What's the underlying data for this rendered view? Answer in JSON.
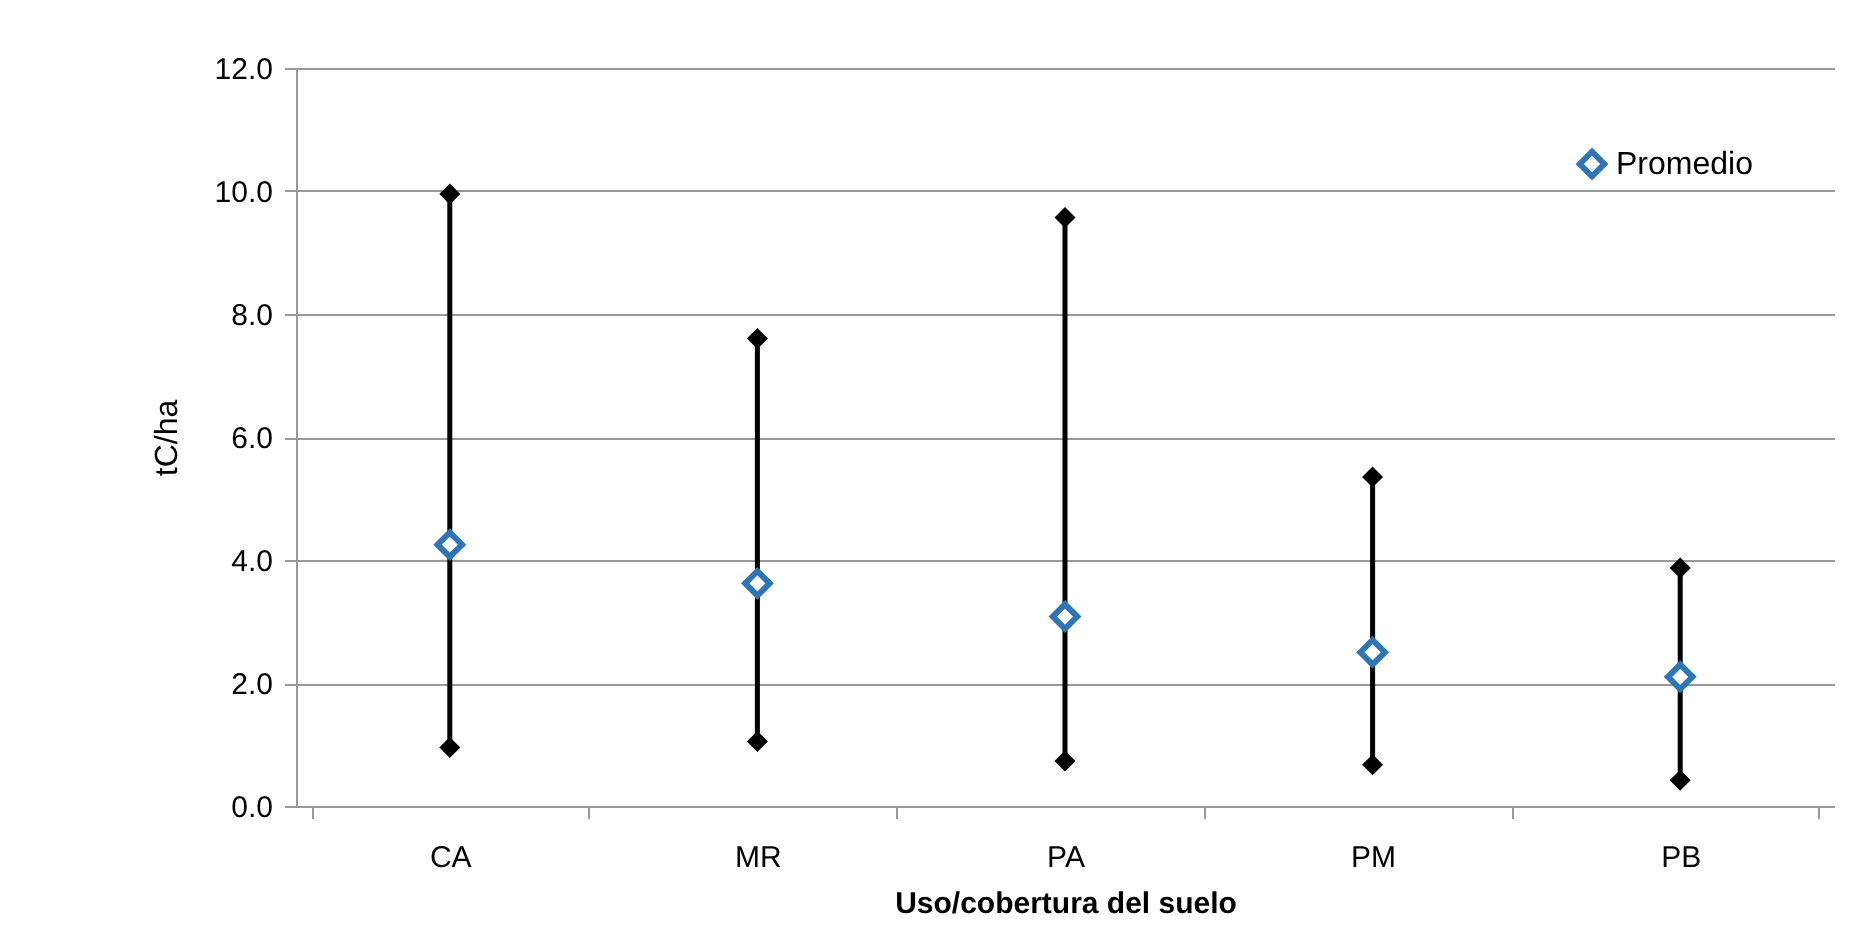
{
  "chart_data": {
    "type": "scatter",
    "xlabel": "Uso/cobertura del suelo",
    "ylabel": "tC/ha",
    "categories": [
      "CA",
      "MR",
      "PA",
      "PM",
      "PB"
    ],
    "series": [
      {
        "type": "bar",
        "color": "#000000",
        "base": [
          0.95,
          1.05,
          0.73,
          0.67,
          0.42
        ],
        "values": [
          9.0,
          6.55,
          8.84,
          4.68,
          3.45
        ]
      },
      {
        "color": "#000000",
        "values": [
          9.95,
          7.6,
          9.57,
          5.35,
          3.87
        ]
      },
      {
        "color": "#000000",
        "values": [
          0.95,
          1.05,
          0.73,
          0.67,
          0.42
        ]
      },
      {
        "name": "Promedio",
        "color": "#2e75b6",
        "values": [
          4.25,
          3.62,
          3.08,
          2.5,
          2.1
        ]
      }
    ],
    "ylim": [
      0,
      12
    ],
    "yticks": [
      {
        "value": 0,
        "label": "0.0"
      },
      {
        "value": 2,
        "label": "2.0"
      },
      {
        "value": 4,
        "label": "4.0"
      },
      {
        "value": 6,
        "label": "6.0"
      },
      {
        "value": 8,
        "label": "8.0"
      },
      {
        "value": 10,
        "label": "10.0"
      },
      {
        "value": 12,
        "label": "12.0"
      }
    ],
    "grid": "y",
    "legend": "top right",
    "marker": "diamond"
  }
}
